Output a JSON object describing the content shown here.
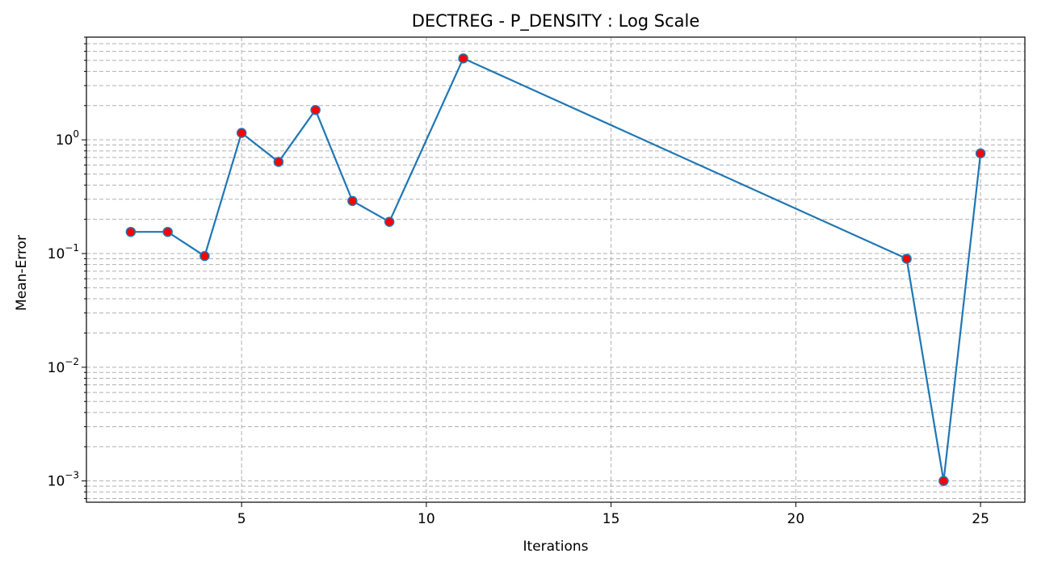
{
  "chart_data": {
    "type": "line",
    "title": "DECTREG - P_DENSITY : Log Scale",
    "xlabel": "Iterations",
    "ylabel": "Mean-Error",
    "yscale": "log",
    "xlim": [
      0.8,
      26.2
    ],
    "ylim": [
      0.00065,
      8.0
    ],
    "grid": true,
    "xticks": [
      5,
      10,
      15,
      20,
      25
    ],
    "yticks": [
      {
        "value": 0.001,
        "base": "10",
        "exp": "−3"
      },
      {
        "value": 0.01,
        "base": "10",
        "exp": "−2"
      },
      {
        "value": 0.1,
        "base": "10",
        "exp": "−1"
      },
      {
        "value": 1,
        "base": "10",
        "exp": "0"
      }
    ],
    "series": [
      {
        "x": [
          2,
          3,
          4,
          5,
          6,
          7,
          8,
          9,
          11,
          23,
          24,
          25
        ],
        "y": [
          0.155,
          0.155,
          0.095,
          1.15,
          0.64,
          1.83,
          0.29,
          0.19,
          5.2,
          0.09,
          0.001,
          0.76
        ],
        "color": "#1f77b4",
        "marker_color": "#ff0000"
      }
    ]
  }
}
